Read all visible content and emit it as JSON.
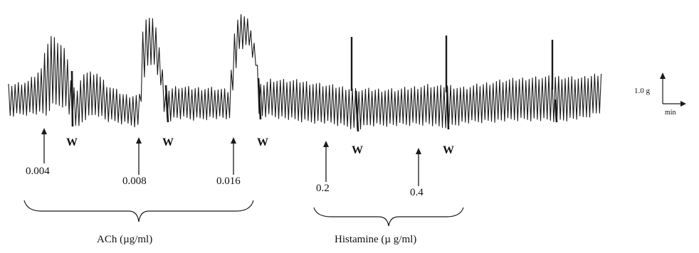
{
  "chart_data": {
    "type": "line",
    "description_type": "isometric tissue contraction recording",
    "colors": {
      "trace": "#1a1a1a",
      "text": "#111111"
    },
    "agonists": [
      {
        "name": "ACh (µg/ml)",
        "doses": [
          {
            "label": "0.004",
            "value": 0.004
          },
          {
            "label": "0.008",
            "value": 0.008
          },
          {
            "label": "0.016",
            "value": 0.016
          }
        ]
      },
      {
        "name": "Histamine (µ g/ml)",
        "doses": [
          {
            "label": "0.2",
            "value": 0.2
          },
          {
            "label": "0.4",
            "value": 0.4
          }
        ]
      }
    ],
    "washout_marker": "W",
    "scale_bar": {
      "force_label": "1.0 g",
      "time_label": "min"
    },
    "events": [
      {
        "order": 1,
        "kind": "dose",
        "agonist": "ACh",
        "label": "0.004"
      },
      {
        "order": 2,
        "kind": "washout",
        "label": "W"
      },
      {
        "order": 3,
        "kind": "dose",
        "agonist": "ACh",
        "label": "0.008"
      },
      {
        "order": 4,
        "kind": "washout",
        "label": "W"
      },
      {
        "order": 5,
        "kind": "dose",
        "agonist": "ACh",
        "label": "0.016"
      },
      {
        "order": 6,
        "kind": "washout",
        "label": "W"
      },
      {
        "order": 7,
        "kind": "dose",
        "agonist": "Histamine",
        "label": "0.2"
      },
      {
        "order": 8,
        "kind": "washout",
        "label": "W"
      },
      {
        "order": 9,
        "kind": "dose",
        "agonist": "Histamine",
        "label": "0.4"
      },
      {
        "order": 10,
        "kind": "washout",
        "label": "W"
      }
    ]
  }
}
